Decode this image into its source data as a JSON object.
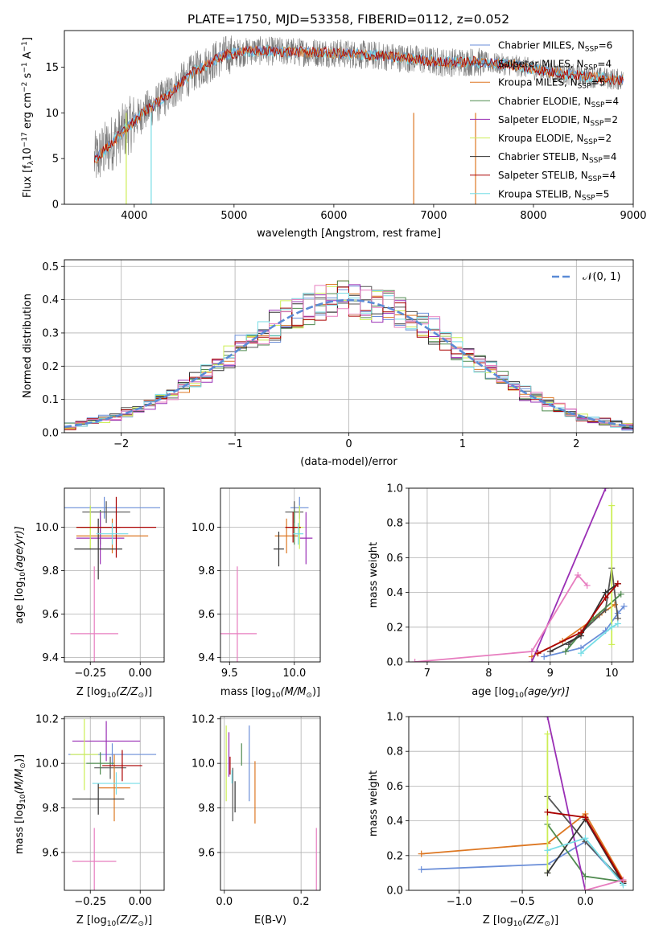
{
  "figure": {
    "title": "PLATE=1750, MJD=53358, FIBERID=0112, z=0.052"
  },
  "colors": {
    "Chabrier MILES": "#6a8ed8",
    "Salpeter MILES": "#555555",
    "Kroupa MILES": "#dd7722",
    "Chabrier ELODIE": "#4f8a4f",
    "Salpeter ELODIE": "#9a2fb5",
    "Kroupa ELODIE": "#ccee55",
    "Chabrier STELIB": "#333333",
    "Salpeter STELIB": "#aa0000",
    "Kroupa STELIB": "#77dde6",
    "pink": "#e77dbf",
    "normal": "#5b8bd6"
  },
  "chart_data": [
    {
      "id": "spectrum",
      "type": "line",
      "xlabel": "wavelength [Angstrom, rest frame]",
      "ylabel": "Flux [f",
      "ylabel_parts": [
        "Flux [f",
        "λ",
        "10",
        "−17",
        " erg cm",
        "−2",
        " s",
        "−1",
        " A",
        "−1",
        "]"
      ],
      "xlim": [
        3300,
        9000
      ],
      "ylim": [
        0,
        19
      ],
      "xticks": [
        "4000",
        "5000",
        "6000",
        "7000",
        "8000",
        "9000"
      ],
      "yticks": [
        "0",
        "5",
        "10",
        "15"
      ],
      "xtick_values": [
        4000,
        5000,
        6000,
        7000,
        8000,
        9000
      ],
      "ytick_values": [
        0,
        5,
        10,
        15
      ],
      "continuum": [
        [
          3600,
          4.8
        ],
        [
          3800,
          7.0
        ],
        [
          3950,
          8.6
        ],
        [
          4100,
          10.1
        ],
        [
          4300,
          11.6
        ],
        [
          4600,
          14.5
        ],
        [
          4900,
          16.3
        ],
        [
          5200,
          16.8
        ],
        [
          5500,
          16.7
        ],
        [
          5900,
          16.6
        ],
        [
          6200,
          16.4
        ],
        [
          6500,
          16.2
        ],
        [
          6800,
          15.9
        ],
        [
          7100,
          15.5
        ],
        [
          7400,
          15.6
        ],
        [
          7800,
          15.2
        ],
        [
          8200,
          14.4
        ],
        [
          8600,
          13.9
        ],
        [
          8900,
          13.6
        ]
      ],
      "legend": [
        {
          "label": "Chabrier MILES, N",
          "sub": "SSP",
          "suffix": "=6"
        },
        {
          "label": "Salpeter MILES, N",
          "sub": "SSP",
          "suffix": "=4"
        },
        {
          "label": "Kroupa MILES, N",
          "sub": "SSP",
          "suffix": "=5"
        },
        {
          "label": "Chabrier ELODIE, N",
          "sub": "SSP",
          "suffix": "=4"
        },
        {
          "label": "Salpeter ELODIE, N",
          "sub": "SSP",
          "suffix": "=2"
        },
        {
          "label": "Kroupa ELODIE, N",
          "sub": "SSP",
          "suffix": "=2"
        },
        {
          "label": "Chabrier STELIB, N",
          "sub": "SSP",
          "suffix": "=4"
        },
        {
          "label": "Salpeter STELIB, N",
          "sub": "SSP",
          "suffix": "=4"
        },
        {
          "label": "Kroupa STELIB, N",
          "sub": "SSP",
          "suffix": "=5"
        }
      ]
    },
    {
      "id": "residuals",
      "type": "histogram",
      "xlabel": "(data-model)/error",
      "ylabel": "Normed distribution",
      "xlim": [
        -2.5,
        2.5
      ],
      "ylim": [
        0,
        0.52
      ],
      "xticks": [
        "−2",
        "−1",
        "0",
        "1",
        "2"
      ],
      "yticks": [
        "0.0",
        "0.1",
        "0.2",
        "0.3",
        "0.4",
        "0.5"
      ],
      "xtick_values": [
        -2,
        -1,
        0,
        1,
        2
      ],
      "ytick_values": [
        0,
        0.1,
        0.2,
        0.3,
        0.4,
        0.5
      ],
      "grid": true,
      "legend_label": "𝒩(0, 1)",
      "bin_width": 0.1
    },
    {
      "id": "age_vs_Z",
      "type": "errorbar",
      "xlabel": "Z [log",
      "xlabel_parts": [
        "Z [log",
        "10",
        "(Z/Z",
        "⊙",
        ")]"
      ],
      "ylabel_parts": [
        "age  [log",
        "10",
        "(age/yr)]"
      ],
      "xlim": [
        -0.38,
        0.12
      ],
      "ylim": [
        9.38,
        10.18
      ],
      "xticks": [
        "−0.25",
        "0.00"
      ],
      "yticks": [
        "9.4",
        "9.6",
        "9.8",
        "10.0"
      ],
      "xtick_values": [
        -0.25,
        0.0
      ],
      "ytick_values": [
        9.4,
        9.6,
        9.8,
        10.0
      ],
      "points": [
        {
          "series": "Chabrier MILES",
          "x": -0.18,
          "xerr": 0.28,
          "y": 10.09,
          "yerr": 0.05
        },
        {
          "series": "Salpeter MILES",
          "x": -0.17,
          "xerr": 0.12,
          "y": 10.07,
          "yerr": 0.05
        },
        {
          "series": "Kroupa MILES",
          "x": -0.14,
          "xerr": 0.18,
          "y": 9.96,
          "yerr": 0.08
        },
        {
          "series": "Chabrier ELODIE",
          "x": -0.2,
          "xerr": 0.1,
          "y": 10.0,
          "yerr": 0.08
        },
        {
          "series": "Salpeter ELODIE",
          "x": -0.2,
          "xerr": 0.12,
          "y": 9.95,
          "yerr": 0.12
        },
        {
          "series": "Kroupa ELODIE",
          "x": -0.25,
          "xerr": 0.07,
          "y": 10.0,
          "yerr": 0.1
        },
        {
          "series": "Chabrier STELIB",
          "x": -0.21,
          "xerr": 0.12,
          "y": 9.9,
          "yerr": 0.14
        },
        {
          "series": "Salpeter STELIB",
          "x": -0.12,
          "xerr": 0.2,
          "y": 10.0,
          "yerr": 0.14
        },
        {
          "series": "Kroupa STELIB",
          "x": -0.14,
          "xerr": 0.08,
          "y": 9.97,
          "yerr": 0.05
        },
        {
          "series": "pink",
          "x": -0.23,
          "xerr": 0.12,
          "y": 9.51,
          "yerr": 0.31
        }
      ]
    },
    {
      "id": "age_vs_mass",
      "type": "errorbar",
      "xlabel_parts": [
        "mass [log",
        "10",
        "(M/M",
        "⊙",
        ")]"
      ],
      "xlim": [
        9.43,
        10.2
      ],
      "ylim": [
        9.38,
        10.18
      ],
      "xticks": [
        "9.5",
        "10.0"
      ],
      "yticks": [
        "9.4",
        "9.6",
        "9.8",
        "10.0"
      ],
      "xtick_values": [
        9.5,
        10.0
      ],
      "ytick_values": [
        9.4,
        9.6,
        9.8,
        10.0
      ],
      "points": [
        {
          "series": "Chabrier MILES",
          "x": 10.04,
          "xerr": 0.07,
          "y": 10.09,
          "yerr": 0.05
        },
        {
          "series": "Salpeter MILES",
          "x": 10.0,
          "xerr": 0.07,
          "y": 10.07,
          "yerr": 0.05
        },
        {
          "series": "Kroupa MILES",
          "x": 9.94,
          "xerr": 0.09,
          "y": 9.96,
          "yerr": 0.08
        },
        {
          "series": "Chabrier ELODIE",
          "x": 10.0,
          "xerr": 0.05,
          "y": 10.0,
          "yerr": 0.08
        },
        {
          "series": "Salpeter ELODIE",
          "x": 10.09,
          "xerr": 0.05,
          "y": 9.95,
          "yerr": 0.12
        },
        {
          "series": "Kroupa ELODIE",
          "x": 10.04,
          "xerr": 0.03,
          "y": 10.0,
          "yerr": 0.1
        },
        {
          "series": "Chabrier STELIB",
          "x": 9.88,
          "xerr": 0.04,
          "y": 9.9,
          "yerr": 0.08
        },
        {
          "series": "Salpeter STELIB",
          "x": 9.99,
          "xerr": 0.06,
          "y": 10.0,
          "yerr": 0.07
        },
        {
          "series": "Kroupa STELIB",
          "x": 10.03,
          "xerr": 0.04,
          "y": 9.97,
          "yerr": 0.05
        },
        {
          "series": "pink",
          "x": 9.56,
          "xerr": 0.15,
          "y": 9.51,
          "yerr": 0.31
        }
      ]
    },
    {
      "id": "weight_vs_age",
      "type": "line",
      "xlabel_parts": [
        "age  [log",
        "10",
        "(age/yr)]"
      ],
      "ylabel": "mass weight",
      "xlim": [
        6.7,
        10.35
      ],
      "ylim": [
        0,
        1
      ],
      "xticks": [
        "7",
        "8",
        "9",
        "10"
      ],
      "yticks": [
        "0.0",
        "0.2",
        "0.4",
        "0.6",
        "0.8",
        "1.0"
      ],
      "xtick_values": [
        7,
        8,
        9,
        10
      ],
      "ytick_values": [
        0,
        0.2,
        0.4,
        0.6,
        0.8,
        1.0
      ],
      "series": [
        {
          "name": "Chabrier MILES",
          "points": [
            [
              8.9,
              0.03
            ],
            [
              9.5,
              0.08
            ],
            [
              9.9,
              0.18
            ],
            [
              10.1,
              0.28
            ],
            [
              10.2,
              0.32
            ]
          ]
        },
        {
          "name": "Kroupa MILES",
          "points": [
            [
              8.7,
              0.03
            ],
            [
              9.2,
              0.12
            ],
            [
              9.8,
              0.27
            ],
            [
              10.05,
              0.33
            ]
          ]
        },
        {
          "name": "Salpeter MILES",
          "points": [
            [
              9.3,
              0.1
            ],
            [
              9.9,
              0.3
            ],
            [
              10.0,
              0.54
            ],
            [
              10.1,
              0.25
            ]
          ]
        },
        {
          "name": "Chabrier ELODIE",
          "points": [
            [
              9.25,
              0.06
            ],
            [
              9.7,
              0.25
            ],
            [
              10.15,
              0.39
            ]
          ]
        },
        {
          "name": "Salpeter ELODIE",
          "points": [
            [
              8.7,
              0.0
            ],
            [
              9.9,
              1.0
            ]
          ]
        },
        {
          "name": "Kroupa ELODIE",
          "points": [
            [
              10.0,
              0.9
            ],
            [
              10.0,
              0.1
            ]
          ]
        },
        {
          "name": "Chabrier STELIB",
          "points": [
            [
              9.0,
              0.06
            ],
            [
              9.5,
              0.15
            ],
            [
              9.9,
              0.4
            ],
            [
              10.1,
              0.45
            ]
          ]
        },
        {
          "name": "Salpeter STELIB",
          "points": [
            [
              8.8,
              0.05
            ],
            [
              9.5,
              0.17
            ],
            [
              9.9,
              0.37
            ],
            [
              10.1,
              0.45
            ]
          ]
        },
        {
          "name": "Kroupa STELIB",
          "points": [
            [
              9.5,
              0.05
            ],
            [
              10.0,
              0.2
            ],
            [
              10.1,
              0.22
            ]
          ]
        },
        {
          "name": "pink",
          "points": [
            [
              6.8,
              0.0
            ],
            [
              8.7,
              0.06
            ],
            [
              9.45,
              0.5
            ],
            [
              9.6,
              0.44
            ]
          ]
        }
      ]
    },
    {
      "id": "mass_vs_Z",
      "type": "errorbar",
      "xlabel_parts": [
        "Z [log",
        "10",
        "(Z/Z",
        "⊙",
        ")]"
      ],
      "ylabel_parts": [
        "mass [log",
        "10",
        "(M/M",
        "⊙",
        ")]"
      ],
      "xlim": [
        -0.38,
        0.12
      ],
      "ylim": [
        9.43,
        10.21
      ],
      "xticks": [
        "−0.25",
        "0.00"
      ],
      "yticks": [
        "9.6",
        "9.8",
        "10.0",
        "10.2"
      ],
      "xtick_values": [
        -0.25,
        0.0
      ],
      "ytick_values": [
        9.6,
        9.8,
        10.0,
        10.2
      ],
      "points": [
        {
          "series": "Chabrier MILES",
          "x": -0.14,
          "xerr": 0.22,
          "y": 10.04,
          "yerr": 0.05
        },
        {
          "series": "Salpeter MILES",
          "x": -0.15,
          "xerr": 0.08,
          "y": 9.98,
          "yerr": 0.05
        },
        {
          "series": "Kroupa MILES",
          "x": -0.13,
          "xerr": 0.08,
          "y": 9.89,
          "yerr": 0.15
        },
        {
          "series": "Chabrier ELODIE",
          "x": -0.2,
          "xerr": 0.07,
          "y": 10.0,
          "yerr": 0.05
        },
        {
          "series": "Salpeter ELODIE",
          "x": -0.17,
          "xerr": 0.17,
          "y": 10.1,
          "yerr": 0.09
        },
        {
          "series": "Kroupa ELODIE",
          "x": -0.28,
          "xerr": 0.07,
          "y": 10.04,
          "yerr": 0.16
        },
        {
          "series": "Chabrier STELIB",
          "x": -0.21,
          "xerr": 0.13,
          "y": 9.84,
          "yerr": 0.07
        },
        {
          "series": "Salpeter STELIB",
          "x": -0.09,
          "xerr": 0.1,
          "y": 9.99,
          "yerr": 0.07
        },
        {
          "series": "Kroupa STELIB",
          "x": -0.12,
          "xerr": 0.12,
          "y": 9.91,
          "yerr": 0.05
        },
        {
          "series": "pink",
          "x": -0.23,
          "xerr": 0.11,
          "y": 9.56,
          "yerr": 0.15
        }
      ]
    },
    {
      "id": "mass_vs_ebv",
      "type": "errorbar",
      "xlabel": "E(B-V)",
      "xlim": [
        -0.01,
        0.25
      ],
      "ylim": [
        9.43,
        10.21
      ],
      "xticks": [
        "0.0",
        "0.2"
      ],
      "yticks": [
        "9.6",
        "9.8",
        "10.0",
        "10.2"
      ],
      "xtick_values": [
        0.0,
        0.2
      ],
      "ytick_values": [
        9.6,
        9.8,
        10.0,
        10.2
      ],
      "points": [
        {
          "series": "Chabrier MILES",
          "x": 0.065,
          "y": 10.0,
          "yerr": 0.17
        },
        {
          "series": "Salpeter MILES",
          "x": 0.022,
          "y": 9.86,
          "yerr": 0.12
        },
        {
          "series": "Kroupa MILES",
          "x": 0.08,
          "y": 9.87,
          "yerr": 0.14
        },
        {
          "series": "Chabrier ELODIE",
          "x": 0.045,
          "y": 10.04,
          "yerr": 0.05
        },
        {
          "series": "Salpeter ELODIE",
          "x": 0.012,
          "y": 10.04,
          "yerr": 0.1
        },
        {
          "series": "Kroupa ELODIE",
          "x": 0.005,
          "y": 10.0,
          "yerr": 0.17
        },
        {
          "series": "Chabrier STELIB",
          "x": 0.028,
          "y": 9.85,
          "yerr": 0.07
        },
        {
          "series": "Salpeter STELIB",
          "x": 0.015,
          "y": 9.99,
          "yerr": 0.04
        },
        {
          "series": "Kroupa STELIB",
          "x": 0.02,
          "y": 9.94,
          "yerr": 0.03
        },
        {
          "series": "pink",
          "x": 0.24,
          "y": 9.57,
          "yerr": 0.14
        }
      ]
    },
    {
      "id": "weight_vs_Z",
      "type": "line",
      "xlabel_parts": [
        "Z [log",
        "10",
        "(Z/Z",
        "⊙",
        ")]"
      ],
      "ylabel": "mass weight",
      "xlim": [
        -1.4,
        0.38
      ],
      "ylim": [
        0,
        1
      ],
      "xticks": [
        "−1.0",
        "−0.5",
        "0.0"
      ],
      "yticks": [
        "0.0",
        "0.2",
        "0.4",
        "0.6",
        "0.8",
        "1.0"
      ],
      "xtick_values": [
        -1.0,
        -0.5,
        0.0
      ],
      "ytick_values": [
        0,
        0.2,
        0.4,
        0.6,
        0.8,
        1.0
      ],
      "series": [
        {
          "name": "Chabrier MILES",
          "points": [
            [
              -1.3,
              0.12
            ],
            [
              -0.3,
              0.15
            ],
            [
              0.0,
              0.28
            ],
            [
              0.3,
              0.04
            ]
          ]
        },
        {
          "name": "Kroupa MILES",
          "points": [
            [
              -1.3,
              0.21
            ],
            [
              -0.3,
              0.27
            ],
            [
              0.0,
              0.44
            ],
            [
              0.3,
              0.06
            ]
          ]
        },
        {
          "name": "Salpeter MILES",
          "points": [
            [
              -0.3,
              0.54
            ],
            [
              0.0,
              0.28
            ],
            [
              0.3,
              0.05
            ]
          ]
        },
        {
          "name": "Chabrier ELODIE",
          "points": [
            [
              -0.3,
              0.38
            ],
            [
              0.0,
              0.08
            ],
            [
              0.3,
              0.05
            ]
          ]
        },
        {
          "name": "Salpeter ELODIE",
          "points": [
            [
              -0.3,
              1.0
            ],
            [
              0.0,
              0.0
            ]
          ]
        },
        {
          "name": "Kroupa ELODIE",
          "points": [
            [
              -0.3,
              0.9
            ],
            [
              -0.3,
              0.1
            ]
          ]
        },
        {
          "name": "Chabrier STELIB",
          "points": [
            [
              -0.3,
              0.1
            ],
            [
              0.0,
              0.41
            ],
            [
              0.3,
              0.04
            ]
          ]
        },
        {
          "name": "Salpeter STELIB",
          "points": [
            [
              -0.3,
              0.45
            ],
            [
              0.0,
              0.42
            ],
            [
              0.3,
              0.05
            ]
          ]
        },
        {
          "name": "Kroupa STELIB",
          "points": [
            [
              -0.3,
              0.23
            ],
            [
              0.0,
              0.3
            ],
            [
              0.3,
              0.03
            ]
          ]
        },
        {
          "name": "pink",
          "points": [
            [
              0.0,
              0.0
            ],
            [
              0.3,
              0.06
            ]
          ]
        }
      ]
    }
  ]
}
